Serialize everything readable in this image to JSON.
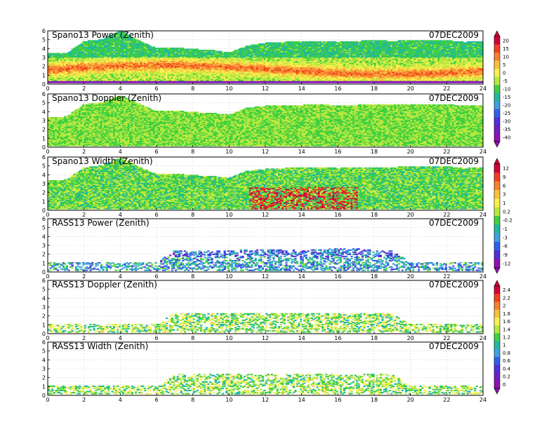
{
  "figure": {
    "date": "07DEC2009"
  },
  "chart_data": [
    {
      "type": "heatmap",
      "title": "Spano13 Power (Zenith)",
      "date": "07DEC2009",
      "x_range": [
        0,
        24
      ],
      "y_range": [
        0,
        6
      ],
      "x_ticks": [
        0,
        2,
        4,
        6,
        8,
        10,
        12,
        14,
        16,
        18,
        20,
        22,
        24
      ],
      "y_ticks": [
        0,
        1,
        2,
        3,
        4,
        5,
        6
      ],
      "grid": true,
      "colorbar": {
        "values": [
          20,
          15,
          10,
          5,
          0,
          -5,
          -10,
          -15,
          -20,
          -25,
          -30,
          -35,
          -40
        ]
      },
      "profile": {
        "times": [
          0,
          1,
          2,
          3,
          4,
          5,
          6,
          7,
          8,
          9,
          10,
          11,
          12,
          13,
          14,
          15,
          16,
          17,
          18,
          19,
          20,
          21,
          22,
          23,
          24
        ],
        "top_heights": [
          3.4,
          3.4,
          4.8,
          5.0,
          6.0,
          4.9,
          4.0,
          4.1,
          3.9,
          3.8,
          3.5,
          4.3,
          4.6,
          4.7,
          4.8,
          4.8,
          4.7,
          4.8,
          4.9,
          4.8,
          4.9,
          4.9,
          4.9,
          4.7,
          4.8
        ]
      }
    },
    {
      "type": "heatmap",
      "title": "Spano13 Doppler (Zenith)",
      "date": "07DEC2009",
      "x_range": [
        0,
        24
      ],
      "y_range": [
        0,
        6
      ],
      "x_ticks": [
        0,
        2,
        4,
        6,
        8,
        10,
        12,
        14,
        16,
        18,
        20,
        22,
        24
      ],
      "y_ticks": [
        0,
        1,
        2,
        3,
        4,
        5,
        6
      ],
      "grid": true,
      "colorbar": {
        "values": [
          20,
          15,
          10,
          5,
          0,
          -5,
          -10,
          -15,
          -20,
          -25,
          -30,
          -35,
          -40
        ]
      },
      "profile": {
        "times": [
          0,
          1,
          2,
          3,
          4,
          5,
          6,
          7,
          8,
          9,
          10,
          11,
          12,
          13,
          14,
          15,
          16,
          17,
          18,
          19,
          20,
          21,
          22,
          23,
          24
        ],
        "top_heights": [
          3.3,
          3.4,
          4.8,
          5.0,
          5.8,
          4.9,
          4.0,
          4.1,
          3.9,
          3.8,
          3.6,
          4.4,
          4.6,
          4.7,
          4.7,
          4.8,
          4.6,
          4.7,
          4.8,
          4.8,
          4.8,
          4.8,
          4.8,
          4.6,
          4.7
        ]
      }
    },
    {
      "type": "heatmap",
      "title": "Spano13 Width (Zenith)",
      "date": "07DEC2009",
      "x_range": [
        0,
        24
      ],
      "y_range": [
        0,
        6
      ],
      "x_ticks": [
        0,
        2,
        4,
        6,
        8,
        10,
        12,
        14,
        16,
        18,
        20,
        22,
        24
      ],
      "y_ticks": [
        0,
        1,
        2,
        3,
        4,
        5,
        6
      ],
      "grid": true,
      "colorbar": {
        "values": [
          12,
          9,
          6,
          3,
          1,
          0.2,
          -0.2,
          -1,
          -3,
          -6,
          -9,
          -12
        ]
      },
      "profile": {
        "times": [
          0,
          1,
          2,
          3,
          4,
          5,
          6,
          7,
          8,
          9,
          10,
          11,
          12,
          13,
          14,
          15,
          16,
          17,
          18,
          19,
          20,
          21,
          22,
          23,
          24
        ],
        "top_heights": [
          3.3,
          3.4,
          4.8,
          5.0,
          5.9,
          4.9,
          4.0,
          4.1,
          3.9,
          3.8,
          3.6,
          4.4,
          4.6,
          4.7,
          4.8,
          4.8,
          4.7,
          4.8,
          4.8,
          4.8,
          4.9,
          4.9,
          4.9,
          4.7,
          4.8
        ]
      }
    },
    {
      "type": "heatmap",
      "title": "RASS13 Power (Zenith)",
      "date": "07DEC2009",
      "x_range": [
        0,
        24
      ],
      "y_range": [
        0,
        6
      ],
      "x_ticks": [
        0,
        2,
        4,
        6,
        8,
        10,
        12,
        14,
        16,
        18,
        20,
        22,
        24
      ],
      "y_ticks": [
        0,
        1,
        2,
        3,
        4,
        5,
        6
      ],
      "grid": true,
      "colorbar": {
        "values": [
          12,
          9,
          6,
          3,
          1,
          0.2,
          -0.2,
          -1,
          -3,
          -6,
          -9,
          -12
        ]
      },
      "profile": {
        "times": [
          0,
          1,
          2,
          3,
          4,
          5,
          6,
          7,
          8,
          9,
          10,
          11,
          12,
          13,
          14,
          15,
          16,
          17,
          18,
          19,
          20,
          21,
          22,
          23,
          24
        ],
        "top_heights": [
          1.0,
          1.0,
          1.0,
          1.0,
          1.0,
          1.0,
          1.0,
          2.4,
          2.4,
          2.4,
          2.4,
          2.5,
          2.5,
          2.5,
          2.5,
          2.5,
          2.6,
          2.6,
          2.4,
          2.4,
          1.0,
          1.0,
          1.0,
          1.0,
          1.0
        ]
      }
    },
    {
      "type": "heatmap",
      "title": "RASS13 Doppler (Zenith)",
      "date": "07DEC2009",
      "x_range": [
        0,
        24
      ],
      "y_range": [
        0,
        6
      ],
      "x_ticks": [
        0,
        2,
        4,
        6,
        8,
        10,
        12,
        14,
        16,
        18,
        20,
        22,
        24
      ],
      "y_ticks": [
        0,
        1,
        2,
        3,
        4,
        5,
        6
      ],
      "grid": true,
      "colorbar": {
        "values": [
          2.4,
          2.2,
          2,
          1.8,
          1.6,
          1.4,
          1.2,
          1,
          0.8,
          0.6,
          0.4,
          0.2,
          0
        ]
      },
      "profile": {
        "times": [
          0,
          1,
          2,
          3,
          4,
          5,
          6,
          7,
          8,
          9,
          10,
          11,
          12,
          13,
          14,
          15,
          16,
          17,
          18,
          19,
          20,
          21,
          22,
          23,
          24
        ],
        "top_heights": [
          1.0,
          1.0,
          1.0,
          1.0,
          1.0,
          1.0,
          1.0,
          2.3,
          2.3,
          2.3,
          2.2,
          2.3,
          2.3,
          2.3,
          2.3,
          2.3,
          2.2,
          2.2,
          2.3,
          2.2,
          1.0,
          1.0,
          1.0,
          1.0,
          1.0
        ]
      }
    },
    {
      "type": "heatmap",
      "title": "RASS13 Width (Zenith)",
      "date": "07DEC2009",
      "x_range": [
        0,
        24
      ],
      "y_range": [
        0,
        6
      ],
      "x_ticks": [
        0,
        2,
        4,
        6,
        8,
        10,
        12,
        14,
        16,
        18,
        20,
        22,
        24
      ],
      "y_ticks": [
        0,
        1,
        2,
        3,
        4,
        5,
        6
      ],
      "grid": true,
      "colorbar": {
        "values": [
          2.4,
          2.2,
          2,
          1.8,
          1.6,
          1.4,
          1.2,
          1,
          0.8,
          0.6,
          0.4,
          0.2,
          0
        ]
      },
      "profile": {
        "times": [
          0,
          1,
          2,
          3,
          4,
          5,
          6,
          7,
          8,
          9,
          10,
          11,
          12,
          13,
          14,
          15,
          16,
          17,
          18,
          19,
          20,
          21,
          22,
          23,
          24
        ],
        "top_heights": [
          1.0,
          1.0,
          1.0,
          1.0,
          1.0,
          1.0,
          1.0,
          2.4,
          2.4,
          2.4,
          2.4,
          2.4,
          2.4,
          2.4,
          2.4,
          2.4,
          2.3,
          2.3,
          2.4,
          2.3,
          1.0,
          1.0,
          1.0,
          1.0,
          1.0
        ]
      }
    }
  ],
  "colorbars": [
    {
      "values": [
        20,
        15,
        10,
        5,
        0,
        -5,
        -10,
        -15,
        -20,
        -25,
        -30,
        -35,
        -40
      ],
      "colors": [
        "#d00038",
        "#f04020",
        "#f88030",
        "#f8c040",
        "#f8f050",
        "#b8e840",
        "#40d040",
        "#20b8a0",
        "#40a0e0",
        "#3060e8",
        "#5030d8",
        "#7020c0",
        "#9010b0"
      ]
    },
    {
      "values": [
        12,
        9,
        6,
        3,
        1,
        0.2,
        -0.2,
        -1,
        -3,
        -6,
        -9,
        -12
      ],
      "colors": [
        "#d00038",
        "#f04020",
        "#f88030",
        "#f8c040",
        "#f8f050",
        "#b8e840",
        "#40d040",
        "#20b8a0",
        "#40a0e0",
        "#3060e8",
        "#5030d8",
        "#9010b0"
      ]
    },
    {
      "values": [
        2.4,
        2.2,
        2,
        1.8,
        1.6,
        1.4,
        1.2,
        1,
        0.8,
        0.6,
        0.4,
        0.2,
        0
      ],
      "colors": [
        "#d00038",
        "#f04020",
        "#f88030",
        "#f8c040",
        "#f8f050",
        "#b8e840",
        "#40d040",
        "#20b8a0",
        "#40a0e0",
        "#3060e8",
        "#5030d8",
        "#7020c0",
        "#9010b0"
      ]
    }
  ]
}
